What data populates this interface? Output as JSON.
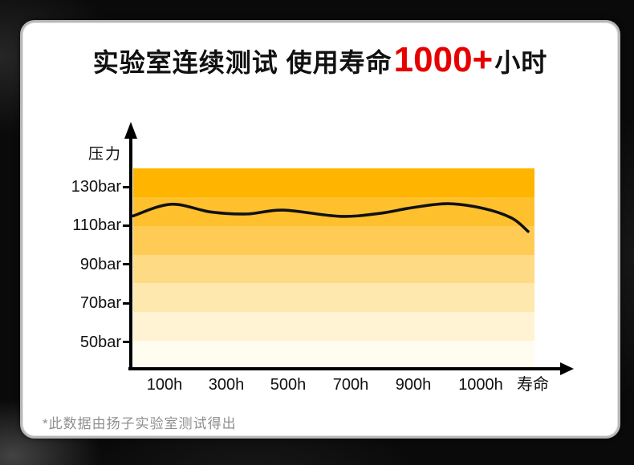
{
  "title": {
    "prefix": "实验室连续测试 使用寿命",
    "highlight": "1000+",
    "suffix": "小时",
    "highlight_color": "#e60000"
  },
  "footnote": "*此数据由扬子实验室测试得出",
  "chart_data": {
    "type": "line",
    "title": "实验室连续测试 使用寿命1000+小时",
    "ylabel": "压力",
    "xlabel": "寿命",
    "y_ticks": [
      "130bar",
      "110bar",
      "90bar",
      "70bar",
      "50bar"
    ],
    "y_tick_values": [
      130,
      110,
      90,
      70,
      50
    ],
    "x_ticks": [
      "100h",
      "300h",
      "500h",
      "700h",
      "900h",
      "1000h",
      "寿命"
    ],
    "grid": false,
    "legend": "none",
    "line_color": "#111111",
    "band_colors": [
      "#ffb400",
      "#ffc02e",
      "#ffcb55",
      "#ffda85",
      "#ffe8ad",
      "#fff3d3",
      "#fffcf0"
    ],
    "series": [
      {
        "name": "压力",
        "points": [
          {
            "x_frac": 0.0,
            "bar": 115.0
          },
          {
            "x_frac": 0.094,
            "bar": 121.0
          },
          {
            "x_frac": 0.194,
            "bar": 117.0
          },
          {
            "x_frac": 0.284,
            "bar": 116.0
          },
          {
            "x_frac": 0.374,
            "bar": 118.0
          },
          {
            "x_frac": 0.514,
            "bar": 114.8
          },
          {
            "x_frac": 0.614,
            "bar": 116.3
          },
          {
            "x_frac": 0.694,
            "bar": 119.2
          },
          {
            "x_frac": 0.784,
            "bar": 121.3
          },
          {
            "x_frac": 0.874,
            "bar": 118.8
          },
          {
            "x_frac": 0.944,
            "bar": 113.8
          },
          {
            "x_frac": 0.984,
            "bar": 107.0
          }
        ]
      }
    ]
  }
}
